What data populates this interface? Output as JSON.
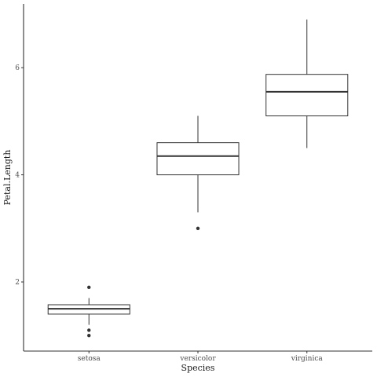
{
  "chart_data": {
    "type": "boxplot",
    "title": "",
    "xlabel": "Species",
    "ylabel": "Petal.Length",
    "ylim": [
      0.71,
      7.19
    ],
    "grid": false,
    "y_ticks": [
      2,
      4,
      6
    ],
    "categories": [
      "setosa",
      "versicolor",
      "virginica"
    ],
    "boxes": [
      {
        "category": "setosa",
        "whisker_low": 1.2,
        "q1": 1.4,
        "median": 1.5,
        "q3": 1.575,
        "whisker_high": 1.7,
        "outliers": [
          1.0,
          1.1,
          1.9
        ]
      },
      {
        "category": "versicolor",
        "whisker_low": 3.3,
        "q1": 4.0,
        "median": 4.35,
        "q3": 4.6,
        "whisker_high": 5.1,
        "outliers": [
          3.0
        ]
      },
      {
        "category": "virginica",
        "whisker_low": 4.5,
        "q1": 5.1,
        "median": 5.55,
        "q3": 5.875,
        "whisker_high": 6.9,
        "outliers": []
      }
    ],
    "colors": {
      "box_fill": "#ffffff",
      "box_line": "#333333",
      "axis_line": "#333333",
      "tick_label": "#4d4d4d",
      "axis_title": "#1a1a1a",
      "background": "#ffffff"
    }
  }
}
